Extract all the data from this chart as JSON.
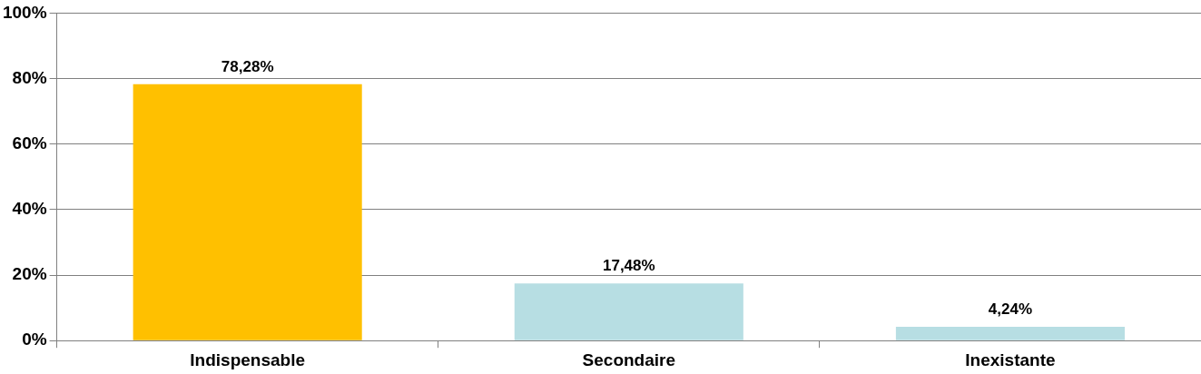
{
  "chart_data": {
    "type": "bar",
    "categories": [
      "Indispensable",
      "Secondaire",
      "Inexistante"
    ],
    "values": [
      78.28,
      17.48,
      4.24
    ],
    "colors": [
      "#ffc000",
      "#b7dee3",
      "#b7dee3"
    ],
    "value_labels": [
      "78,28%",
      "17,48%",
      "4,24%"
    ],
    "ylim": [
      0,
      100
    ],
    "yticks": [
      {
        "value": 0,
        "label": "0%"
      },
      {
        "value": 20,
        "label": "20%"
      },
      {
        "value": 40,
        "label": "40%"
      },
      {
        "value": 60,
        "label": "60%"
      },
      {
        "value": 80,
        "label": "80%"
      },
      {
        "value": 100,
        "label": "100%"
      }
    ],
    "grid": "y",
    "legend": false
  }
}
